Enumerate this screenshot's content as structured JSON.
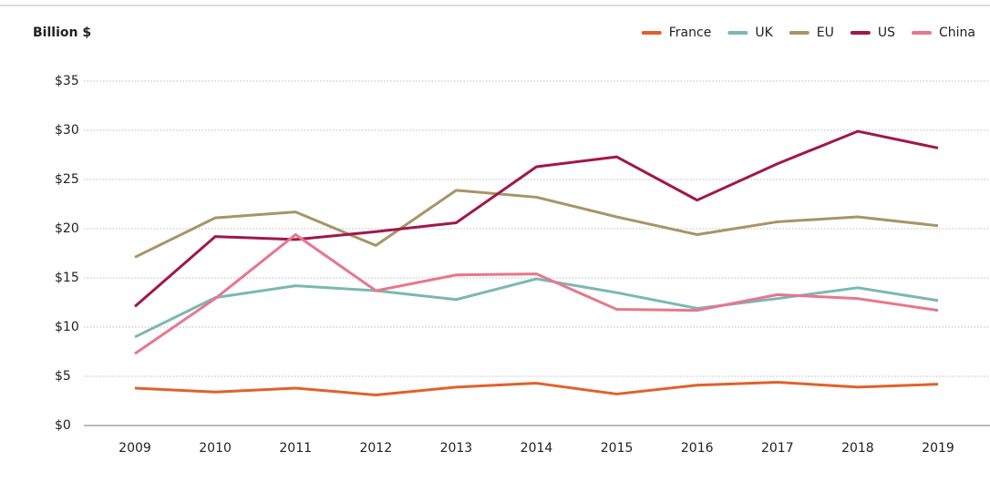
{
  "chart_data": {
    "type": "line",
    "y_label": "Billion $",
    "categories": [
      "2009",
      "2010",
      "2011",
      "2012",
      "2013",
      "2014",
      "2015",
      "2016",
      "2017",
      "2018",
      "2019"
    ],
    "series": [
      {
        "name": "France",
        "color": "#e0622a",
        "values": [
          3.8,
          3.4,
          3.8,
          3.1,
          3.9,
          4.3,
          3.2,
          4.1,
          4.4,
          3.9,
          4.2
        ]
      },
      {
        "name": "UK",
        "color": "#7ab8b2",
        "values": [
          9.0,
          13.0,
          14.2,
          13.7,
          12.8,
          14.9,
          13.5,
          11.9,
          12.9,
          14.0,
          12.7
        ]
      },
      {
        "name": "EU",
        "color": "#a89466",
        "values": [
          17.1,
          21.1,
          21.7,
          18.3,
          23.9,
          23.2,
          21.2,
          19.4,
          20.7,
          21.2,
          20.3
        ]
      },
      {
        "name": "US",
        "color": "#a0174a",
        "values": [
          12.1,
          19.2,
          18.9,
          19.7,
          20.6,
          26.3,
          27.3,
          22.9,
          26.6,
          29.9,
          28.2
        ]
      },
      {
        "name": "China",
        "color": "#e8768c",
        "values": [
          7.3,
          12.9,
          19.4,
          13.7,
          15.3,
          15.4,
          11.8,
          11.7,
          13.3,
          12.9,
          11.7
        ]
      }
    ],
    "ylim": [
      0,
      35
    ],
    "yticks": [
      {
        "value": 0,
        "label": "$0"
      },
      {
        "value": 5,
        "label": "$5"
      },
      {
        "value": 10,
        "label": "$10"
      },
      {
        "value": 15,
        "label": "$15"
      },
      {
        "value": 20,
        "label": "$20"
      },
      {
        "value": 25,
        "label": "$25"
      },
      {
        "value": 30,
        "label": "$30"
      },
      {
        "value": 35,
        "label": "$35"
      }
    ],
    "grid": true,
    "legend": "top-right"
  }
}
